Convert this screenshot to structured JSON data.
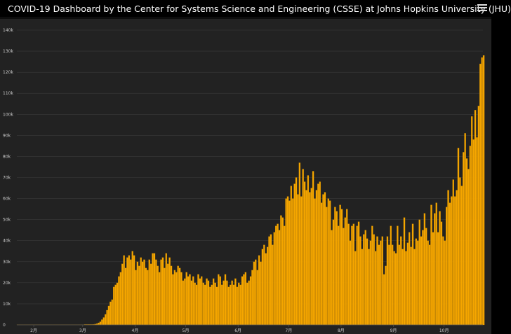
{
  "header": {
    "title": "COVID-19 Dashboard by the Center for Systems Science and Engineering (CSSE) at Johns Hopkins University (JHU)",
    "logo_icon": "university-shield-icon",
    "menu_icon": "hamburger-menu-icon"
  },
  "colors": {
    "background": "#222222",
    "bar": "#f5a600",
    "bar_edge": "#c98700",
    "grid": "#3a3a3a",
    "text": "#cccccc"
  },
  "chart_data": {
    "type": "bar",
    "title": "",
    "xlabel": "",
    "ylabel": "",
    "ylim": [
      0,
      140000
    ],
    "yticks": [
      {
        "value": 0,
        "label": "0"
      },
      {
        "value": 10000,
        "label": "10k"
      },
      {
        "value": 20000,
        "label": "20k"
      },
      {
        "value": 30000,
        "label": "30k"
      },
      {
        "value": 40000,
        "label": "40k"
      },
      {
        "value": 50000,
        "label": "50k"
      },
      {
        "value": 60000,
        "label": "60k"
      },
      {
        "value": 70000,
        "label": "70k"
      },
      {
        "value": 80000,
        "label": "80k"
      },
      {
        "value": 90000,
        "label": "90k"
      },
      {
        "value": 100000,
        "label": "100k"
      },
      {
        "value": 110000,
        "label": "110k"
      },
      {
        "value": 120000,
        "label": "120k"
      },
      {
        "value": 130000,
        "label": "130k"
      },
      {
        "value": 140000,
        "label": "140k"
      }
    ],
    "xrange": [
      "2020-01-22",
      "2020-10-24"
    ],
    "xticks": [
      {
        "date": "2020-02-01",
        "label": "2月"
      },
      {
        "date": "2020-03-01",
        "label": "3月"
      },
      {
        "date": "2020-04-01",
        "label": "4月"
      },
      {
        "date": "2020-05-01",
        "label": "5月"
      },
      {
        "date": "2020-06-01",
        "label": "6月"
      },
      {
        "date": "2020-07-01",
        "label": "7月"
      },
      {
        "date": "2020-08-01",
        "label": "8月"
      },
      {
        "date": "2020-09-01",
        "label": "9月"
      },
      {
        "date": "2020-10-01",
        "label": "10月"
      }
    ],
    "series": [
      {
        "name": "",
        "start_date": "2020-01-22",
        "values": [
          0,
          0,
          0,
          0,
          0,
          0,
          0,
          0,
          0,
          0,
          0,
          0,
          0,
          0,
          0,
          0,
          0,
          0,
          0,
          0,
          0,
          0,
          0,
          0,
          0,
          0,
          0,
          0,
          0,
          0,
          0,
          0,
          0,
          0,
          0,
          0,
          0,
          0,
          0,
          0,
          10,
          30,
          60,
          100,
          150,
          250,
          400,
          600,
          1000,
          1500,
          2500,
          3500,
          5000,
          7000,
          9000,
          11000,
          12000,
          18000,
          19000,
          20000,
          23000,
          25000,
          29000,
          33000,
          27000,
          32000,
          33000,
          31000,
          35000,
          33000,
          26000,
          30000,
          28000,
          32000,
          30000,
          31000,
          27000,
          26000,
          31000,
          29000,
          34000,
          34000,
          31000,
          28000,
          25000,
          31000,
          32000,
          27000,
          34000,
          29000,
          32000,
          28000,
          24000,
          26000,
          25000,
          28000,
          27000,
          25000,
          21000,
          22000,
          25000,
          23000,
          24000,
          21000,
          23000,
          20000,
          19000,
          24000,
          22000,
          23000,
          20000,
          19000,
          22000,
          21000,
          18000,
          19000,
          22000,
          20000,
          18000,
          24000,
          23000,
          19000,
          21000,
          24000,
          21000,
          18000,
          19000,
          21000,
          19000,
          22000,
          18000,
          20000,
          19000,
          23000,
          24000,
          25000,
          20000,
          21000,
          23000,
          26000,
          30000,
          31000,
          26000,
          33000,
          30000,
          36000,
          38000,
          34000,
          37000,
          42000,
          43000,
          38000,
          44000,
          47000,
          48000,
          45000,
          52000,
          51000,
          47000,
          60000,
          61000,
          59000,
          66000,
          60000,
          67000,
          70000,
          62000,
          77000,
          61000,
          74000,
          68000,
          64000,
          71000,
          63000,
          65000,
          73000,
          60000,
          64000,
          67000,
          68000,
          58000,
          62000,
          63000,
          56000,
          60000,
          59000,
          45000,
          50000,
          56000,
          54000,
          47000,
          57000,
          55000,
          46000,
          51000,
          55000,
          48000,
          40000,
          47000,
          48000,
          35000,
          47000,
          49000,
          42000,
          36000,
          43000,
          45000,
          41000,
          36000,
          40000,
          47000,
          43000,
          35000,
          42000,
          38000,
          40000,
          42000,
          24000,
          28000,
          42000,
          38000,
          47000,
          38000,
          35000,
          34000,
          47000,
          38000,
          42000,
          36000,
          51000,
          35000,
          39000,
          44000,
          37000,
          48000,
          36000,
          41000,
          40000,
          50000,
          42000,
          45000,
          53000,
          46000,
          40000,
          38000,
          57000,
          44000,
          53000,
          58000,
          44000,
          54000,
          49000,
          42000,
          40000,
          56000,
          64000,
          58000,
          61000,
          69000,
          61000,
          64000,
          84000,
          70000,
          66000,
          82000,
          91000,
          79000,
          74000,
          85000,
          99000,
          88000,
          102000,
          89000,
          104000,
          124000,
          127000,
          128000
        ]
      }
    ],
    "grid": true,
    "legend": "none"
  }
}
